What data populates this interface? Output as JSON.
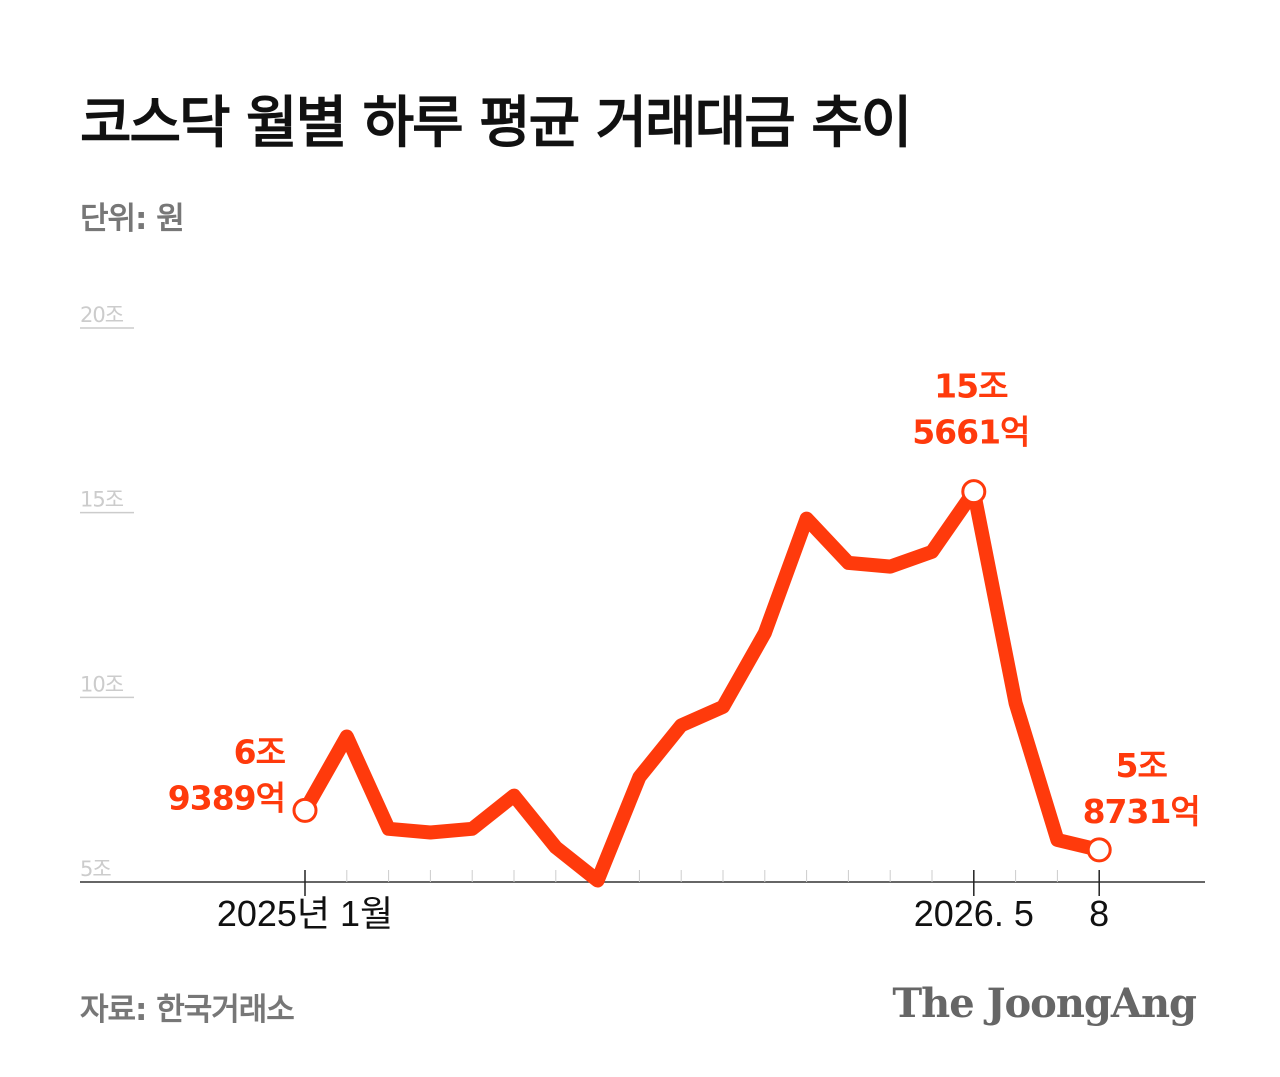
{
  "title": "코스닥 월별 하루 평균 거래대금 추이",
  "unit_label": "단위: 원",
  "source_label": "자료: 한국거래소",
  "logo_text": "The JoongAng",
  "colors": {
    "line": "#ff3a0c",
    "gridline": "#cccccc",
    "axis": "#333333",
    "text": "#111111",
    "muted": "#777777"
  },
  "chart_data": {
    "type": "line",
    "title": "코스닥 월별 하루 평균 거래대금 추이",
    "ylabel": "단위: 원",
    "ylim": [
      5,
      20
    ],
    "y_ticks": [
      {
        "value": 20,
        "label": "20조"
      },
      {
        "value": 15,
        "label": "15조"
      },
      {
        "value": 10,
        "label": "10조"
      },
      {
        "value": 5,
        "label": "5조"
      }
    ],
    "x": [
      "2025-01",
      "2025-02",
      "2025-03",
      "2025-04",
      "2025-05",
      "2025-06",
      "2025-07",
      "2025-08",
      "2025-09",
      "2025-10",
      "2025-11",
      "2025-12",
      "2026-01",
      "2026-02",
      "2026-03",
      "2026-04",
      "2026-05",
      "2026-06",
      "2026-07",
      "2026-08"
    ],
    "values": [
      6.94,
      8.94,
      6.44,
      6.34,
      6.44,
      7.34,
      5.94,
      5.04,
      7.84,
      9.24,
      9.74,
      11.74,
      14.84,
      13.64,
      13.54,
      13.94,
      15.57,
      9.84,
      6.14,
      5.87
    ],
    "x_tick_labels": [
      {
        "index": 0,
        "label": "2025년 1월"
      },
      {
        "index": 16,
        "label": "2026. 5"
      },
      {
        "index": 19,
        "label": "8"
      }
    ],
    "annotations": [
      {
        "index": 0,
        "lines": [
          "6조",
          "9389억"
        ]
      },
      {
        "index": 16,
        "lines": [
          "15조",
          "5661억"
        ]
      },
      {
        "index": 19,
        "lines": [
          "5조",
          "8731억"
        ]
      }
    ],
    "grid": false
  }
}
